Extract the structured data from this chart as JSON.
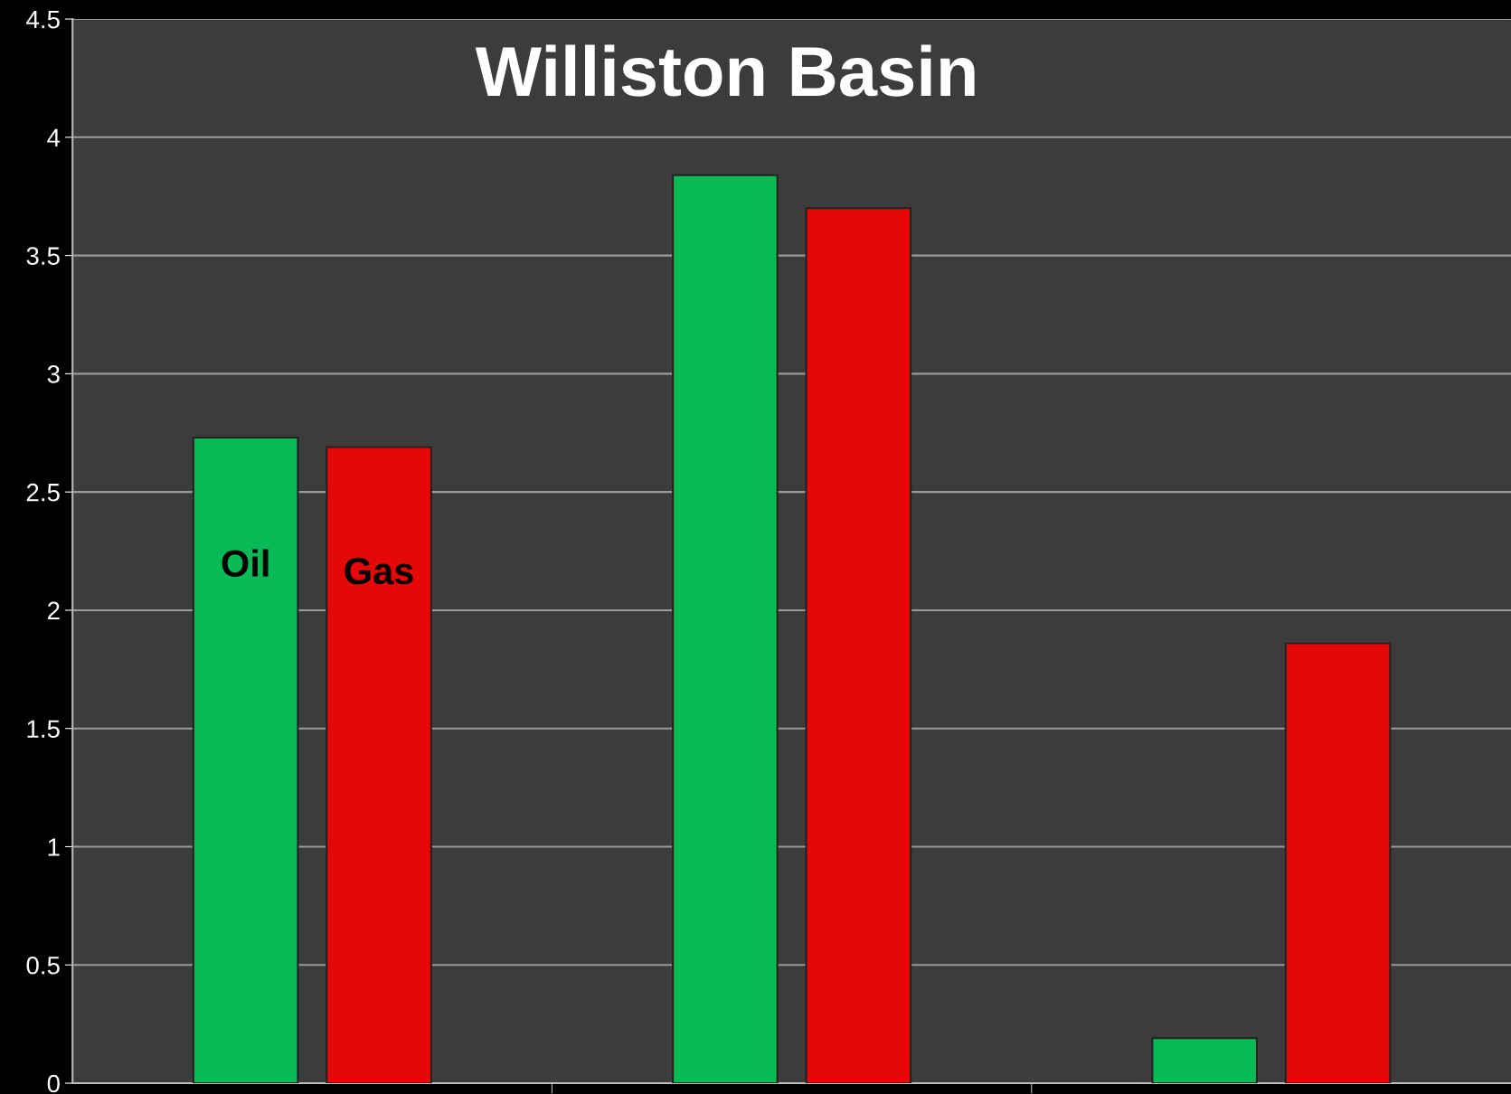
{
  "chart_data": {
    "type": "bar",
    "title": "Williston Basin",
    "categories": [
      null,
      null,
      null
    ],
    "series": [
      {
        "name": "Oil",
        "color": "#06bb55",
        "values": [
          2.73,
          3.84,
          0.19
        ]
      },
      {
        "name": "Gas",
        "color": "#e60808",
        "values": [
          2.69,
          3.7,
          1.86
        ]
      }
    ],
    "ylim": [
      0,
      4.5
    ],
    "yticks": [
      0,
      0.5,
      1,
      1.5,
      2,
      2.5,
      3,
      3.5,
      4,
      4.5
    ],
    "grid": "y",
    "tick_labels": "y",
    "legend": false
  }
}
